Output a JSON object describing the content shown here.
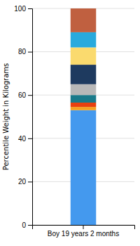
{
  "chart_data": {
    "type": "bar",
    "stacked": true,
    "y_label": "Percentile Weight in Kilograms",
    "categories": [
      "Boy 19 years 2 months"
    ],
    "series": [
      {
        "color": "#4499EE",
        "values": [
          53.0
        ]
      },
      {
        "color": "#F5A020",
        "values": [
          1.5
        ]
      },
      {
        "color": "#E84010",
        "values": [
          2.0
        ]
      },
      {
        "color": "#1A7A8A",
        "values": [
          3.5
        ]
      },
      {
        "color": "#B8B8B8",
        "values": [
          5.0
        ]
      },
      {
        "color": "#1E3A5F",
        "values": [
          9.0
        ]
      },
      {
        "color": "#FADA6E",
        "values": [
          8.0
        ]
      },
      {
        "color": "#28AADD",
        "values": [
          7.0
        ]
      },
      {
        "color": "#C06040",
        "values": [
          11.0
        ]
      }
    ],
    "ylim": [
      0,
      100
    ],
    "yticks": [
      0,
      20,
      40,
      60,
      80,
      100
    ],
    "grid": true
  }
}
